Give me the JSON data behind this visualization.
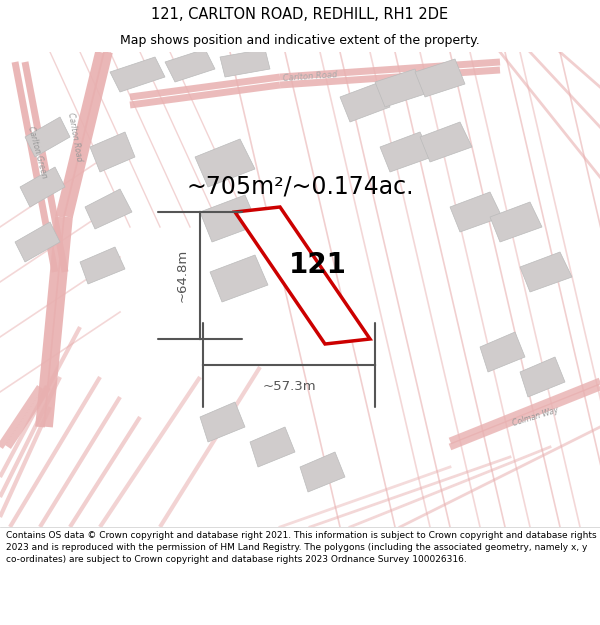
{
  "title_line1": "121, CARLTON ROAD, REDHILL, RH1 2DE",
  "title_line2": "Map shows position and indicative extent of the property.",
  "area_text": "~705m²/~0.174ac.",
  "label_121": "121",
  "dim_height": "~64.8m",
  "dim_width": "~57.3m",
  "footer_text": "Contains OS data © Crown copyright and database right 2021. This information is subject to Crown copyright and database rights 2023 and is reproduced with the permission of HM Land Registry. The polygons (including the associated geometry, namely x, y co-ordinates) are subject to Crown copyright and database rights 2023 Ordnance Survey 100026316.",
  "map_bg": "#faf8f8",
  "road_color": "#e8b0b0",
  "road_color2": "#d89090",
  "property_color": "#cc0000",
  "dim_color": "#555555",
  "text_color": "#000000",
  "gray_block_color": "#d0cccc",
  "gray_block_edge": "#bbbbbb",
  "title_fontsize": 10.5,
  "subtitle_fontsize": 9,
  "area_fontsize": 17,
  "label_fontsize": 20,
  "dim_fontsize": 9.5,
  "footer_fontsize": 6.5
}
